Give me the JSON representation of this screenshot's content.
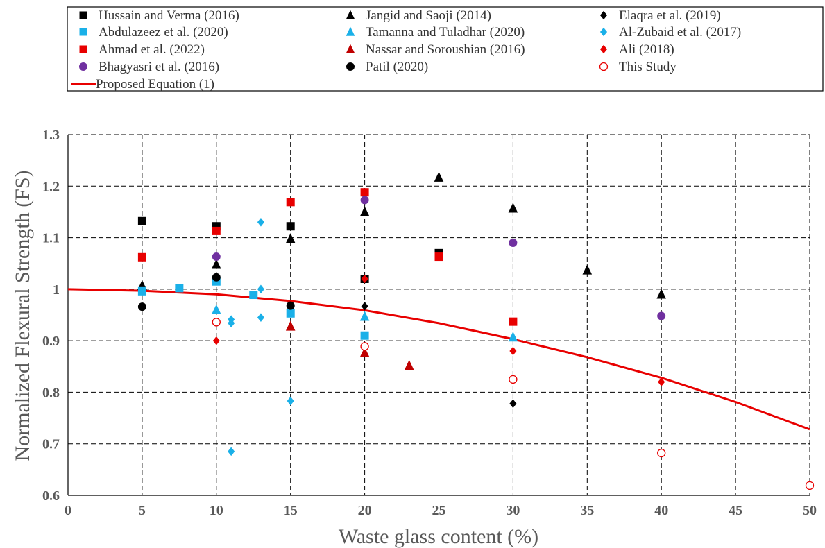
{
  "chart_data": {
    "type": "scatter",
    "xlabel": "Waste glass content (%)",
    "ylabel": "Normalized Flexural Strength (FS)",
    "xlim": [
      0,
      50
    ],
    "ylim": [
      0.6,
      1.3
    ],
    "x_ticks": [
      "0",
      "5",
      "10",
      "15",
      "20",
      "25",
      "30",
      "35",
      "40",
      "45",
      "50"
    ],
    "y_ticks": [
      "0.6",
      "0.7",
      "0.8",
      "0.9",
      "1",
      "1.1",
      "1.2",
      "1.3"
    ],
    "grid": true,
    "grid_style": "dashed",
    "legend_position": "top",
    "series": [
      {
        "name": "Hussain and Verma (2016)",
        "marker": "square",
        "color": "#000000",
        "filled": true,
        "points": [
          [
            5,
            1.132
          ],
          [
            10,
            1.122
          ],
          [
            15,
            1.122
          ],
          [
            20,
            1.02
          ],
          [
            25,
            1.07
          ]
        ]
      },
      {
        "name": "Jangid and Saoji (2014)",
        "marker": "triangle",
        "color": "#000000",
        "filled": true,
        "points": [
          [
            5,
            1.007
          ],
          [
            10,
            1.048
          ],
          [
            15,
            1.098
          ],
          [
            20,
            1.15
          ],
          [
            25,
            1.217
          ],
          [
            30,
            1.157
          ],
          [
            35,
            1.037
          ],
          [
            40,
            0.99
          ]
        ]
      },
      {
        "name": "Elaqra et al. (2019)",
        "marker": "diamond",
        "color": "#000000",
        "filled": true,
        "points": [
          [
            20,
            0.967
          ],
          [
            30,
            0.778
          ]
        ]
      },
      {
        "name": "Abdulazeez et al. (2020)",
        "marker": "square",
        "color": "#1AB0E8",
        "filled": true,
        "points": [
          [
            5,
            0.996
          ],
          [
            7.5,
            1.002
          ],
          [
            10,
            1.015
          ],
          [
            12.5,
            0.989
          ],
          [
            15,
            0.953
          ],
          [
            20,
            0.91
          ]
        ]
      },
      {
        "name": "Tamanna and Tuladhar (2020)",
        "marker": "triangle",
        "color": "#1AB0E8",
        "filled": true,
        "points": [
          [
            10,
            0.96
          ],
          [
            20,
            0.947
          ],
          [
            30,
            0.907
          ]
        ]
      },
      {
        "name": "Al-Zubaid et al. (2017)",
        "marker": "diamond",
        "color": "#1AB0E8",
        "filled": true,
        "points": [
          [
            11,
            0.941
          ],
          [
            11,
            0.934
          ],
          [
            11,
            0.685
          ],
          [
            13,
            1.13
          ],
          [
            13,
            1.0
          ],
          [
            13,
            0.945
          ],
          [
            15,
            0.783
          ]
        ]
      },
      {
        "name": "Ahmad et al. (2022)",
        "marker": "square",
        "color": "#E80000",
        "filled": true,
        "points": [
          [
            5,
            1.062
          ],
          [
            10,
            1.113
          ],
          [
            15,
            1.169
          ],
          [
            20,
            1.188
          ],
          [
            25,
            1.063
          ],
          [
            30,
            0.937
          ]
        ]
      },
      {
        "name": "Nassar and Soroushian (2016)",
        "marker": "triangle",
        "color": "#C00000",
        "filled": true,
        "points": [
          [
            15,
            0.928
          ],
          [
            20,
            0.877
          ],
          [
            23,
            0.852
          ]
        ]
      },
      {
        "name": "Ali (2018)",
        "marker": "diamond",
        "color": "#E80000",
        "filled": true,
        "points": [
          [
            10,
            0.9
          ],
          [
            20,
            1.02
          ],
          [
            30,
            0.88
          ],
          [
            40,
            0.82
          ]
        ]
      },
      {
        "name": "Bhagyasri et al. (2016)",
        "marker": "circle",
        "color": "#7030A0",
        "filled": true,
        "points": [
          [
            10,
            1.063
          ],
          [
            20,
            1.173
          ],
          [
            30,
            1.09
          ],
          [
            40,
            0.948
          ]
        ]
      },
      {
        "name": "Patil (2020)",
        "marker": "circle",
        "color": "#000000",
        "filled": true,
        "points": [
          [
            5,
            0.966
          ],
          [
            10,
            1.023
          ],
          [
            15,
            0.968
          ]
        ]
      },
      {
        "name": "This Study",
        "marker": "circle",
        "color": "#E80000",
        "filled": false,
        "points": [
          [
            10,
            0.936
          ],
          [
            20,
            0.889
          ],
          [
            30,
            0.825
          ],
          [
            40,
            0.682
          ],
          [
            50,
            0.619
          ]
        ]
      }
    ],
    "curve": {
      "name": "Proposed Equation (1)",
      "color": "#E80000",
      "x": [
        0,
        5,
        10,
        15,
        20,
        25,
        30,
        35,
        40,
        45,
        50
      ],
      "y": [
        1.0,
        0.997,
        0.99,
        0.977,
        0.959,
        0.934,
        0.903,
        0.868,
        0.828,
        0.781,
        0.728
      ]
    }
  }
}
